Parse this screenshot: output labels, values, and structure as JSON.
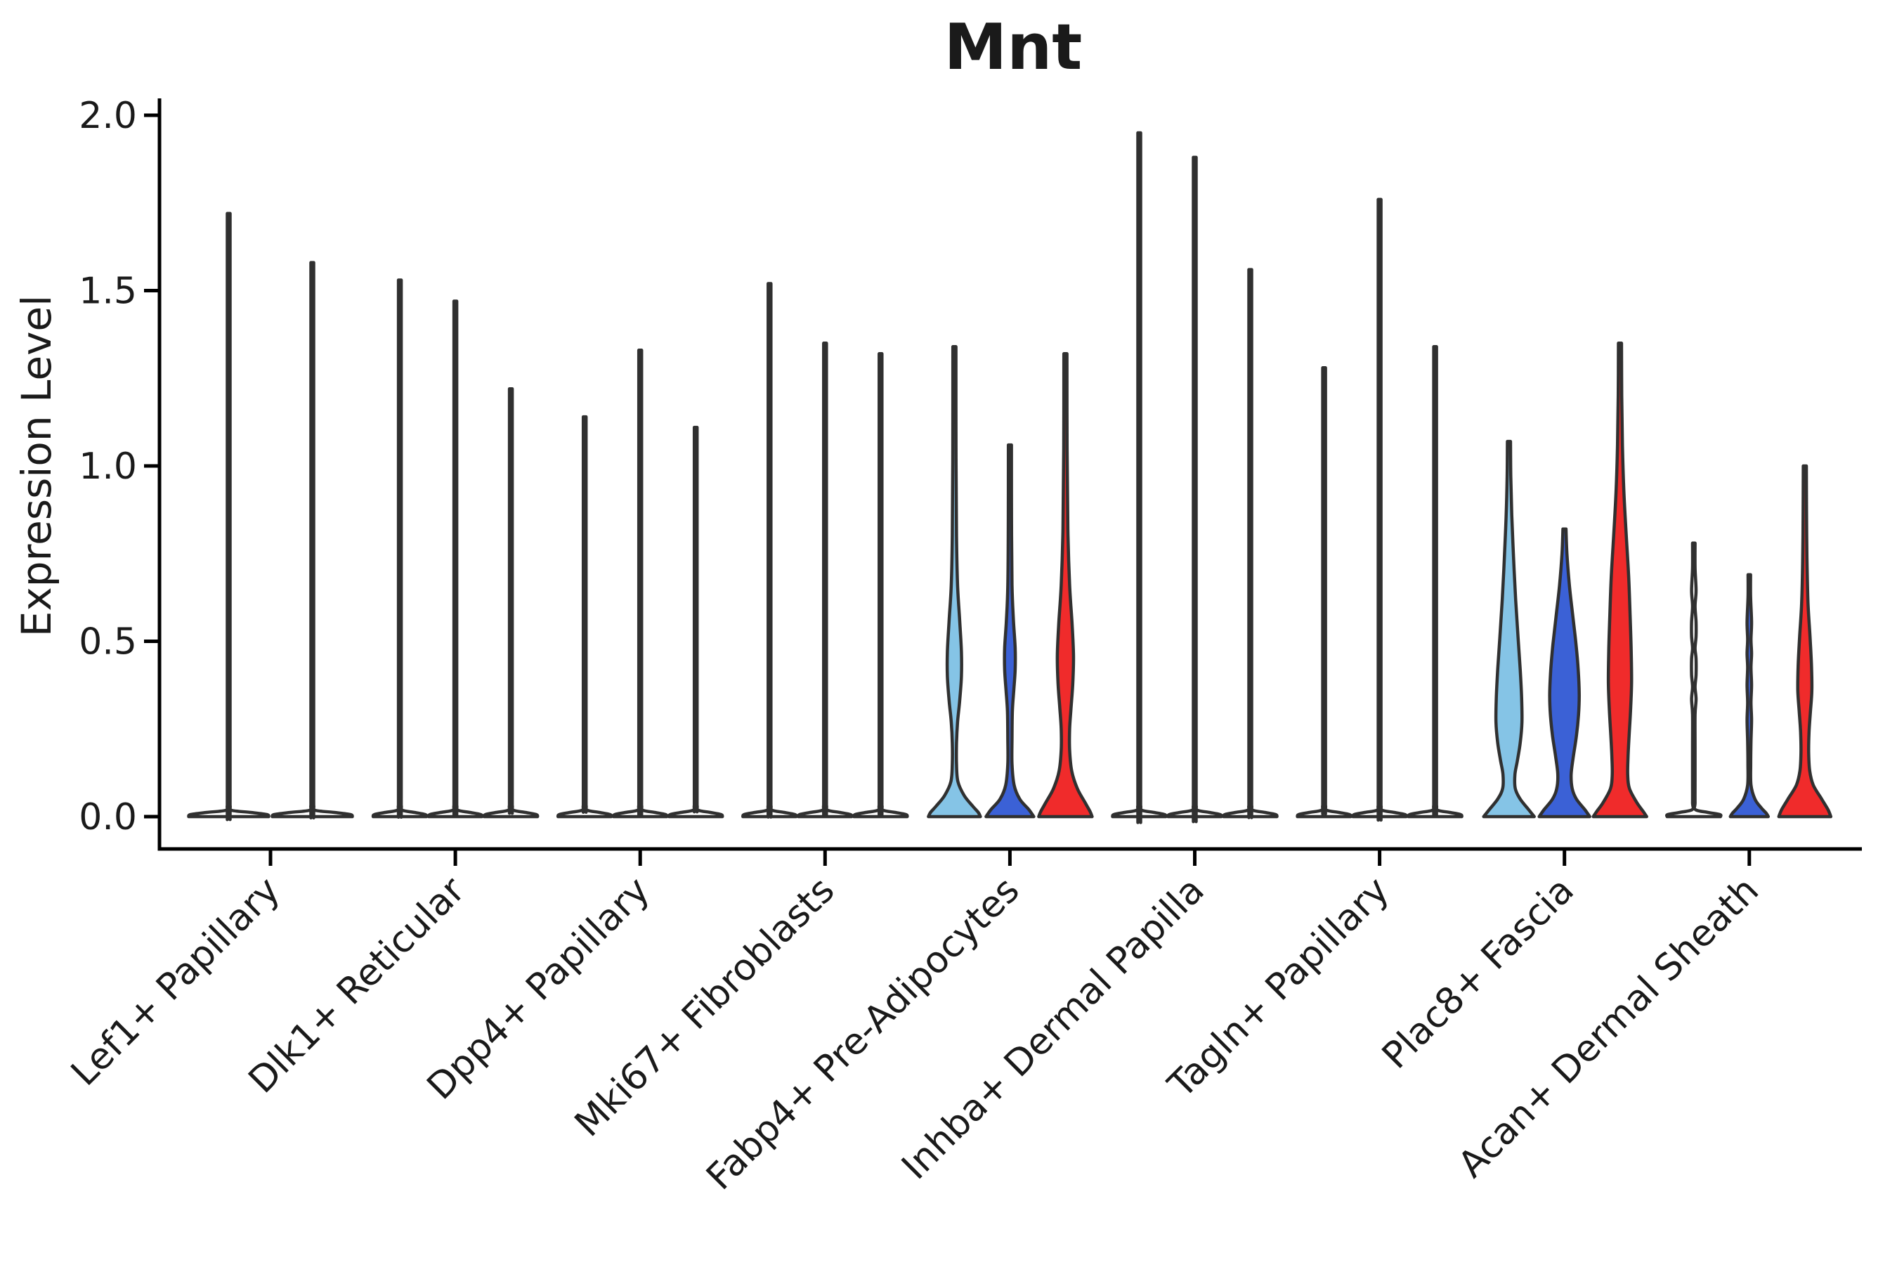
{
  "title": "Mnt",
  "palette": {
    "light_blue": "#85C4E6",
    "blue": "#3B61D6",
    "red": "#F02B2B",
    "white": "#FFFFFF",
    "outline": "#303030",
    "axis": "#000000",
    "text": "#1a1a1a"
  },
  "chart_data": {
    "type": "violin",
    "title": "Mnt",
    "xlabel": "",
    "ylabel": "Expression Level",
    "ylim": [
      0,
      2.05
    ],
    "ytick_values": [
      0,
      0.5,
      1.0,
      1.5,
      2.0
    ],
    "ytick_labels": [
      "0.0",
      "0.5",
      "1.0",
      "1.5",
      "2.0"
    ],
    "grid": "off",
    "legend": "none",
    "series_colors": {
      "condition_1": "#85C4E6",
      "condition_2": "#3B61D6",
      "condition_3": "#F02B2B"
    },
    "categories": [
      "Lef1+ Papillary",
      "Dlk1+ Reticular",
      "Dpp4+ Papillary",
      "Mki67+ Fibroblasts",
      "Fabp4+ Pre-Adipocytes",
      "Inhba+ Dermal Papilla",
      "Tagln+ Papillary",
      "Plac8+ Fascia",
      "Acan+ Dermal Sheath"
    ],
    "groups": [
      {
        "category": "Lef1+ Papillary",
        "violins": [
          {
            "shape": "spike",
            "color": "white",
            "max": 1.72,
            "offset": -59.5,
            "half_width": 57
          },
          {
            "shape": "spike",
            "color": "white",
            "max": 1.58,
            "offset": 59.5,
            "half_width": 57
          }
        ]
      },
      {
        "category": "Dlk1+ Reticular",
        "violins": [
          {
            "shape": "spike",
            "color": "white",
            "max": 1.53,
            "offset": -79,
            "half_width": 38
          },
          {
            "shape": "spike",
            "color": "white",
            "max": 1.47,
            "offset": 0,
            "half_width": 38
          },
          {
            "shape": "spike",
            "color": "white",
            "max": 1.22,
            "offset": 79,
            "half_width": 38
          }
        ]
      },
      {
        "category": "Dpp4+ Papillary",
        "violins": [
          {
            "shape": "spike",
            "color": "white",
            "max": 1.14,
            "offset": -79,
            "half_width": 38
          },
          {
            "shape": "spike",
            "color": "white",
            "max": 1.33,
            "offset": 0,
            "half_width": 38
          },
          {
            "shape": "spike",
            "color": "white",
            "max": 1.11,
            "offset": 79,
            "half_width": 38
          }
        ]
      },
      {
        "category": "Mki67+ Fibroblasts",
        "violins": [
          {
            "shape": "spike",
            "color": "white",
            "max": 1.52,
            "offset": -79,
            "half_width": 38
          },
          {
            "shape": "spike",
            "color": "white",
            "max": 1.35,
            "offset": 0,
            "half_width": 38
          },
          {
            "shape": "spike",
            "color": "white",
            "max": 1.32,
            "offset": 79,
            "half_width": 38
          }
        ]
      },
      {
        "category": "Fabp4+ Pre-Adipocytes",
        "violins": [
          {
            "shape": "violin",
            "color": "light_blue",
            "max": 1.34,
            "offset": -79,
            "profile": [
              [
                1.34,
                2.2
              ],
              [
                1.05,
                2.3
              ],
              [
                0.8,
                3
              ],
              [
                0.66,
                4.5
              ],
              [
                0.56,
                7.5
              ],
              [
                0.47,
                10
              ],
              [
                0.4,
                10
              ],
              [
                0.33,
                7.5
              ],
              [
                0.27,
                4.5
              ],
              [
                0.21,
                3
              ],
              [
                0.15,
                3
              ],
              [
                0.1,
                5
              ],
              [
                0.06,
                14
              ],
              [
                0.03,
                26
              ],
              [
                0.012,
                34
              ],
              [
                0,
                37
              ]
            ]
          },
          {
            "shape": "violin",
            "color": "blue",
            "max": 1.06,
            "offset": 0,
            "profile": [
              [
                1.06,
                2.2
              ],
              [
                0.85,
                2.3
              ],
              [
                0.66,
                3
              ],
              [
                0.56,
                5
              ],
              [
                0.48,
                7.5
              ],
              [
                0.42,
                7.5
              ],
              [
                0.36,
                5.5
              ],
              [
                0.3,
                3.5
              ],
              [
                0.22,
                3
              ],
              [
                0.15,
                3
              ],
              [
                0.09,
                6
              ],
              [
                0.05,
                14
              ],
              [
                0.02,
                27
              ],
              [
                0,
                34
              ]
            ]
          },
          {
            "shape": "violin",
            "color": "red",
            "max": 1.32,
            "offset": 79,
            "profile": [
              [
                1.32,
                2.2
              ],
              [
                1.05,
                2.4
              ],
              [
                0.82,
                3.5
              ],
              [
                0.66,
                6
              ],
              [
                0.55,
                9.5
              ],
              [
                0.46,
                11.5
              ],
              [
                0.38,
                10.5
              ],
              [
                0.31,
                8
              ],
              [
                0.25,
                6
              ],
              [
                0.19,
                6
              ],
              [
                0.13,
                9
              ],
              [
                0.08,
                17
              ],
              [
                0.04,
                28
              ],
              [
                0.015,
                35
              ],
              [
                0,
                38
              ]
            ]
          }
        ]
      },
      {
        "category": "Inhba+ Dermal Papilla",
        "violins": [
          {
            "shape": "spike",
            "color": "white",
            "max": 1.95,
            "offset": -79,
            "half_width": 38
          },
          {
            "shape": "spike",
            "color": "white",
            "max": 1.88,
            "offset": 0,
            "half_width": 38
          },
          {
            "shape": "spike",
            "color": "white",
            "max": 1.56,
            "offset": 79,
            "half_width": 38
          }
        ]
      },
      {
        "category": "Tagln+ Papillary",
        "violins": [
          {
            "shape": "spike",
            "color": "white",
            "max": 1.28,
            "offset": -79,
            "half_width": 38
          },
          {
            "shape": "spike",
            "color": "white",
            "max": 1.76,
            "offset": 0,
            "half_width": 38
          },
          {
            "shape": "spike",
            "color": "white",
            "max": 1.34,
            "offset": 79,
            "half_width": 38
          }
        ]
      },
      {
        "category": "Plac8+ Fascia",
        "violins": [
          {
            "shape": "violin",
            "color": "light_blue",
            "max": 1.07,
            "offset": -79,
            "profile": [
              [
                1.07,
                2.2
              ],
              [
                0.97,
                2.6
              ],
              [
                0.86,
                4
              ],
              [
                0.74,
                6.5
              ],
              [
                0.62,
                9.5
              ],
              [
                0.51,
                13
              ],
              [
                0.42,
                16
              ],
              [
                0.34,
                18
              ],
              [
                0.27,
                18.5
              ],
              [
                0.21,
                16
              ],
              [
                0.16,
                12
              ],
              [
                0.12,
                8.5
              ],
              [
                0.08,
                9
              ],
              [
                0.05,
                16
              ],
              [
                0.02,
                28
              ],
              [
                0,
                36
              ]
            ]
          },
          {
            "shape": "violin",
            "color": "blue",
            "max": 0.82,
            "offset": 0,
            "profile": [
              [
                0.82,
                2.2
              ],
              [
                0.75,
                3.5
              ],
              [
                0.66,
                7
              ],
              [
                0.57,
                12
              ],
              [
                0.49,
                16.5
              ],
              [
                0.42,
                19.5
              ],
              [
                0.35,
                21
              ],
              [
                0.29,
                20
              ],
              [
                0.23,
                17
              ],
              [
                0.17,
                12.5
              ],
              [
                0.12,
                9.5
              ],
              [
                0.08,
                11
              ],
              [
                0.05,
                17
              ],
              [
                0.02,
                29
              ],
              [
                0,
                36
              ]
            ]
          },
          {
            "shape": "violin",
            "color": "red",
            "max": 1.35,
            "offset": 79,
            "profile": [
              [
                1.35,
                2.2
              ],
              [
                1.2,
                2.5
              ],
              [
                1.06,
                3.5
              ],
              [
                0.93,
                5.5
              ],
              [
                0.8,
                9
              ],
              [
                0.68,
                12.5
              ],
              [
                0.57,
                14.5
              ],
              [
                0.47,
                16
              ],
              [
                0.38,
                16.5
              ],
              [
                0.3,
                15
              ],
              [
                0.23,
                13
              ],
              [
                0.17,
                11.5
              ],
              [
                0.12,
                11
              ],
              [
                0.08,
                13.5
              ],
              [
                0.04,
                24
              ],
              [
                0.015,
                33
              ],
              [
                0,
                38
              ]
            ]
          }
        ]
      },
      {
        "category": "Acan+ Dermal Sheath",
        "violins": [
          {
            "shape": "violin",
            "color": "white",
            "max": 0.78,
            "offset": -79,
            "profile": [
              [
                0.78,
                1.8
              ],
              [
                0.71,
                1.8
              ],
              [
                0.645,
                3.2
              ],
              [
                0.6,
                1.8
              ],
              [
                0.555,
                3.2
              ],
              [
                0.515,
                3.2
              ],
              [
                0.48,
                1.8
              ],
              [
                0.45,
                3.2
              ],
              [
                0.405,
                3.2
              ],
              [
                0.37,
                1.8
              ],
              [
                0.335,
                3.2
              ],
              [
                0.29,
                1.8
              ],
              [
                0.2,
                1.8
              ],
              [
                0.1,
                1.8
              ],
              [
                0.04,
                1.8
              ],
              [
                0.02,
                2.2
              ],
              [
                0.012,
                20
              ],
              [
                0.006,
                37
              ],
              [
                0,
                38
              ]
            ]
          },
          {
            "shape": "violin",
            "color": "blue",
            "max": 0.69,
            "offset": 0,
            "profile": [
              [
                0.69,
                1.8
              ],
              [
                0.63,
                1.8
              ],
              [
                0.555,
                3.2
              ],
              [
                0.505,
                2.4
              ],
              [
                0.465,
                3.2
              ],
              [
                0.425,
                2.4
              ],
              [
                0.375,
                3.2
              ],
              [
                0.325,
                2.4
              ],
              [
                0.275,
                3.2
              ],
              [
                0.215,
                2.4
              ],
              [
                0.15,
                2
              ],
              [
                0.09,
                2.4
              ],
              [
                0.05,
                8
              ],
              [
                0.025,
                17
              ],
              [
                0.01,
                24
              ],
              [
                0,
                27
              ]
            ]
          },
          {
            "shape": "violin",
            "color": "red",
            "max": 1.0,
            "offset": 79,
            "profile": [
              [
                1.0,
                2.2
              ],
              [
                0.88,
                2.4
              ],
              [
                0.74,
                3
              ],
              [
                0.61,
                4.5
              ],
              [
                0.51,
                7.5
              ],
              [
                0.43,
                9.5
              ],
              [
                0.36,
                10
              ],
              [
                0.3,
                8
              ],
              [
                0.24,
                6
              ],
              [
                0.18,
                5.5
              ],
              [
                0.13,
                7
              ],
              [
                0.09,
                12
              ],
              [
                0.05,
                24
              ],
              [
                0.02,
                33
              ],
              [
                0,
                37
              ]
            ]
          }
        ]
      }
    ]
  }
}
